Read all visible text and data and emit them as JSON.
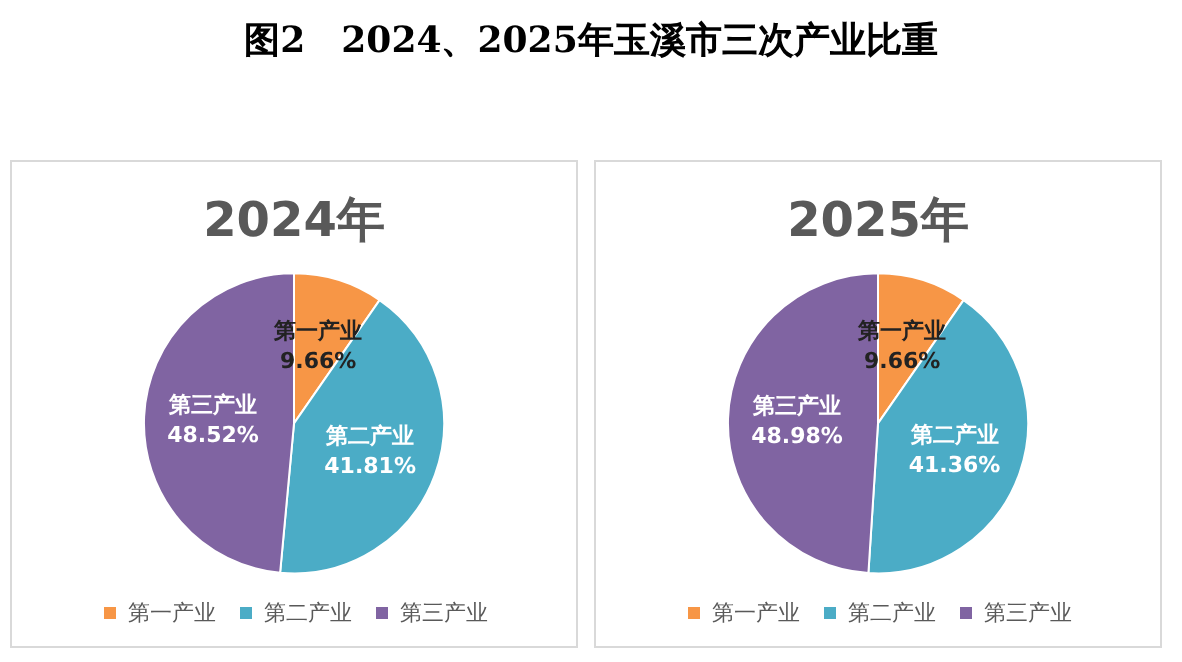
{
  "chart_data": [
    {
      "type": "pie",
      "title": "2024年",
      "annotations": [
        "图2　2024、2025年玉溪市三次产业比重"
      ],
      "categories": [
        "第一产业",
        "第二产业",
        "第三产业"
      ],
      "values": [
        9.66,
        41.81,
        48.52
      ],
      "value_labels": [
        "9.66%",
        "41.81%",
        "48.52%"
      ],
      "colors": [
        "#f79646",
        "#4bacc6",
        "#8064a2"
      ],
      "legend": "bottom"
    },
    {
      "type": "pie",
      "title": "2025年",
      "categories": [
        "第一产业",
        "第二产业",
        "第三产业"
      ],
      "values": [
        9.66,
        41.36,
        48.98
      ],
      "value_labels": [
        "9.66%",
        "41.36%",
        "48.98%"
      ],
      "colors": [
        "#f79646",
        "#4bacc6",
        "#8064a2"
      ],
      "legend": "bottom"
    }
  ]
}
